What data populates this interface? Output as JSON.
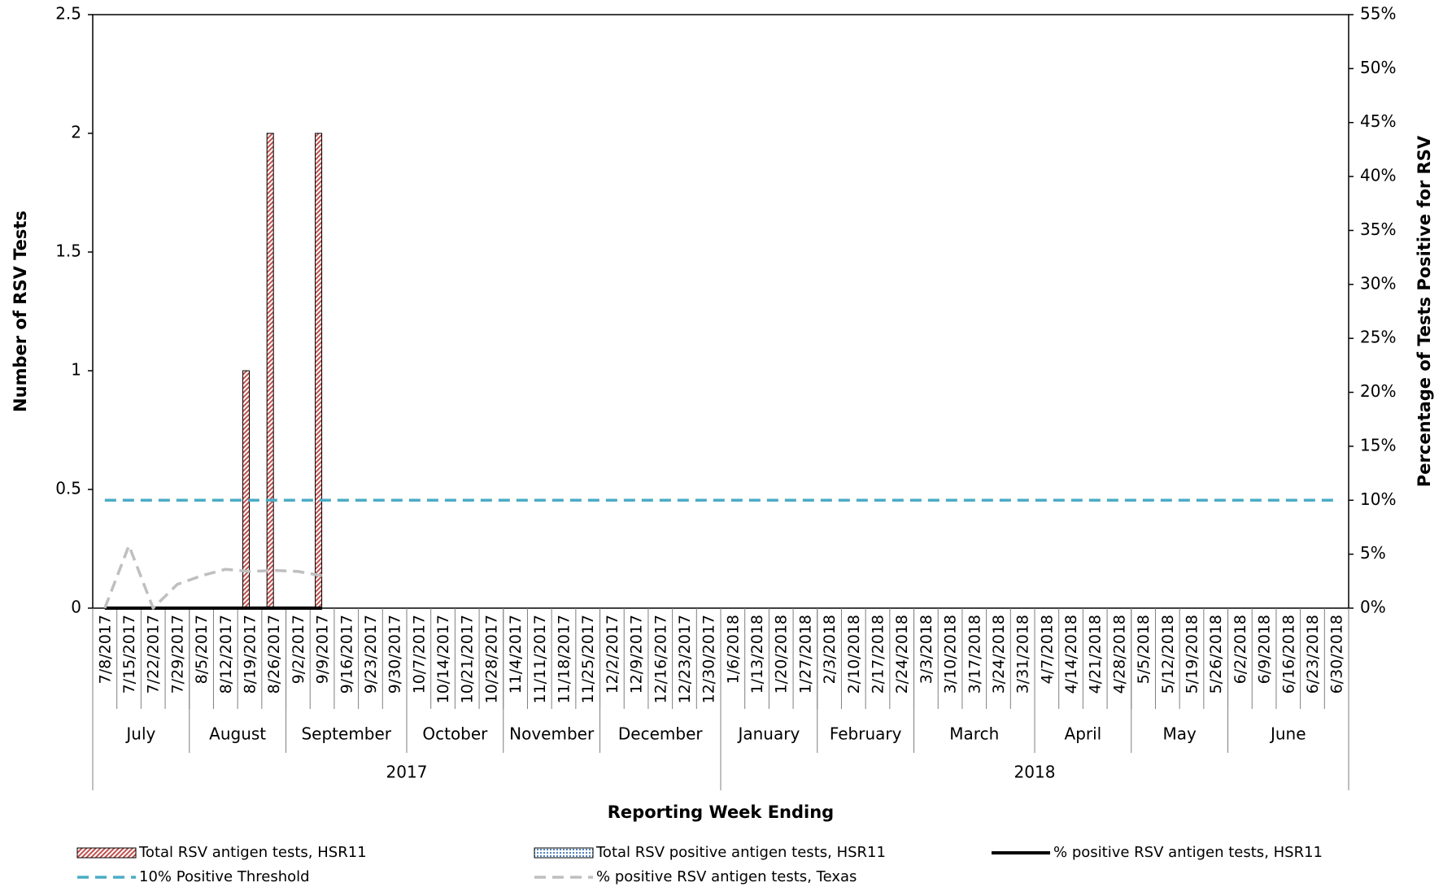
{
  "chart_data": {
    "type": "bar",
    "y_label": "Number of RSV Tests",
    "y2_label": "Percentage of Tests Positive for RSV",
    "x_label": "Reporting Week Ending",
    "categories": [
      "7/8/2017",
      "7/15/2017",
      "7/22/2017",
      "7/29/2017",
      "8/5/2017",
      "8/12/2017",
      "8/19/2017",
      "8/26/2017",
      "9/2/2017",
      "9/9/2017",
      "9/16/2017",
      "9/23/2017",
      "9/30/2017",
      "10/7/2017",
      "10/14/2017",
      "10/21/2017",
      "10/28/2017",
      "11/4/2017",
      "11/11/2017",
      "11/18/2017",
      "11/25/2017",
      "12/2/2017",
      "12/9/2017",
      "12/16/2017",
      "12/23/2017",
      "12/30/2017",
      "1/6/2018",
      "1/13/2018",
      "1/20/2018",
      "1/27/2018",
      "2/3/2018",
      "2/10/2018",
      "2/17/2018",
      "2/24/2018",
      "3/3/2018",
      "3/10/2018",
      "3/17/2018",
      "3/24/2018",
      "3/31/2018",
      "4/7/2018",
      "4/14/2018",
      "4/21/2018",
      "4/28/2018",
      "5/5/2018",
      "5/12/2018",
      "5/19/2018",
      "5/26/2018",
      "6/2/2018",
      "6/9/2018",
      "6/16/2018",
      "6/23/2018",
      "6/30/2018"
    ],
    "month_groups": [
      {
        "label": "July",
        "span": 4
      },
      {
        "label": "August",
        "span": 4
      },
      {
        "label": "September",
        "span": 5
      },
      {
        "label": "October",
        "span": 4
      },
      {
        "label": "November",
        "span": 4
      },
      {
        "label": "December",
        "span": 5
      },
      {
        "label": "January",
        "span": 4
      },
      {
        "label": "February",
        "span": 4
      },
      {
        "label": "March",
        "span": 5
      },
      {
        "label": "April",
        "span": 4
      },
      {
        "label": "May",
        "span": 4
      },
      {
        "label": "June",
        "span": 5
      }
    ],
    "year_groups": [
      {
        "label": "2017",
        "span": 26
      },
      {
        "label": "2018",
        "span": 26
      }
    ],
    "series": [
      {
        "name": "Total RSV antigen tests, HSR11",
        "type": "bar",
        "color": "#c0504d",
        "values": [
          0,
          0,
          0,
          0,
          0,
          0,
          1,
          2,
          0,
          2,
          null,
          null,
          null,
          null,
          null,
          null,
          null,
          null,
          null,
          null,
          null,
          null,
          null,
          null,
          null,
          null,
          null,
          null,
          null,
          null,
          null,
          null,
          null,
          null,
          null,
          null,
          null,
          null,
          null,
          null,
          null,
          null,
          null,
          null,
          null,
          null,
          null,
          null,
          null,
          null,
          null,
          null
        ]
      },
      {
        "name": "Total RSV positive antigen tests, HSR11",
        "type": "bar",
        "color": "#4f81bd",
        "values": [
          0,
          0,
          0,
          0,
          0,
          0,
          0,
          0,
          0,
          0,
          null,
          null,
          null,
          null,
          null,
          null,
          null,
          null,
          null,
          null,
          null,
          null,
          null,
          null,
          null,
          null,
          null,
          null,
          null,
          null,
          null,
          null,
          null,
          null,
          null,
          null,
          null,
          null,
          null,
          null,
          null,
          null,
          null,
          null,
          null,
          null,
          null,
          null,
          null,
          null,
          null,
          null
        ]
      },
      {
        "name": "% positive RSV antigen tests, HSR11",
        "type": "line",
        "axis": "y2",
        "color": "#000000",
        "dashed": false,
        "values": [
          0,
          0,
          0,
          0,
          0,
          0,
          0,
          0,
          0,
          0,
          null,
          null,
          null,
          null,
          null,
          null,
          null,
          null,
          null,
          null,
          null,
          null,
          null,
          null,
          null,
          null,
          null,
          null,
          null,
          null,
          null,
          null,
          null,
          null,
          null,
          null,
          null,
          null,
          null,
          null,
          null,
          null,
          null,
          null,
          null,
          null,
          null,
          null,
          null,
          null,
          null,
          null
        ]
      },
      {
        "name": "10% Positive Threshold",
        "type": "line",
        "axis": "y2",
        "color": "#4bacc6",
        "dashed": true,
        "values": [
          10,
          10,
          10,
          10,
          10,
          10,
          10,
          10,
          10,
          10,
          10,
          10,
          10,
          10,
          10,
          10,
          10,
          10,
          10,
          10,
          10,
          10,
          10,
          10,
          10,
          10,
          10,
          10,
          10,
          10,
          10,
          10,
          10,
          10,
          10,
          10,
          10,
          10,
          10,
          10,
          10,
          10,
          10,
          10,
          10,
          10,
          10,
          10,
          10,
          10,
          10,
          10
        ]
      },
      {
        "name": "% positive RSV antigen tests, Texas",
        "type": "line",
        "axis": "y2",
        "color": "#bfbfbf",
        "dashed": true,
        "values": [
          0,
          5.8,
          0,
          2.2,
          3.0,
          3.6,
          3.4,
          3.5,
          3.4,
          3.0,
          null,
          null,
          null,
          null,
          null,
          null,
          null,
          null,
          null,
          null,
          null,
          null,
          null,
          null,
          null,
          null,
          null,
          null,
          null,
          null,
          null,
          null,
          null,
          null,
          null,
          null,
          null,
          null,
          null,
          null,
          null,
          null,
          null,
          null,
          null,
          null,
          null,
          null,
          null,
          null,
          null,
          null
        ]
      }
    ],
    "ylim": [
      0,
      2.5
    ],
    "yticks": [
      0,
      0.5,
      1,
      1.5,
      2,
      2.5
    ],
    "y2lim": [
      0,
      55
    ],
    "y2ticks": [
      {
        "value": 0,
        "label": "0%"
      },
      {
        "value": 5,
        "label": "5%"
      },
      {
        "value": 10,
        "label": "10%"
      },
      {
        "value": 15,
        "label": "15%"
      },
      {
        "value": 20,
        "label": "20%"
      },
      {
        "value": 25,
        "label": "25%"
      },
      {
        "value": 30,
        "label": "30%"
      },
      {
        "value": 35,
        "label": "35%"
      },
      {
        "value": 40,
        "label": "40%"
      },
      {
        "value": 45,
        "label": "45%"
      },
      {
        "value": 50,
        "label": "50%"
      },
      {
        "value": 55,
        "label": "55%"
      }
    ],
    "grid": false
  }
}
